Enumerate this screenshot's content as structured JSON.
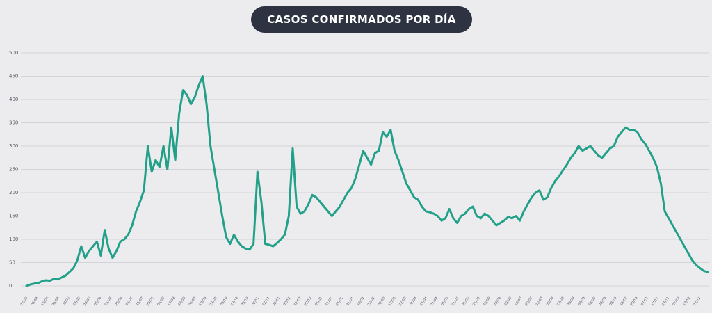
{
  "chart_data": {
    "type": "line",
    "title": "CASOS CONFIRMADOS POR DÍA",
    "xlabel": "",
    "ylabel": "",
    "ylim": [
      0,
      500
    ],
    "y_ticks": [
      "0",
      "50",
      "100",
      "150",
      "200",
      "250",
      "300",
      "350",
      "400",
      "450",
      "500"
    ],
    "x_tick_labels": [
      "27/03",
      "06/04",
      "16/04",
      "26/04",
      "06/05",
      "16/05",
      "26/05",
      "05/06",
      "15/06",
      "25/06",
      "05/07",
      "15/07",
      "25/07",
      "04/08",
      "14/08",
      "24/08",
      "03/09",
      "13/09",
      "23/09",
      "03/10",
      "13/10",
      "23/10",
      "02/11",
      "12/11",
      "22/11",
      "02/12",
      "12/12",
      "22/12",
      "01/01",
      "11/01",
      "21/01",
      "31/01",
      "10/02",
      "20/02",
      "02/03",
      "12/03",
      "22/03",
      "01/04",
      "11/04",
      "21/04",
      "01/05",
      "11/05",
      "21/05",
      "31/05",
      "10/06",
      "20/06",
      "30/06",
      "10/07",
      "20/07",
      "30/07",
      "09/08",
      "19/08",
      "29/08",
      "08/09",
      "18/09",
      "28/09",
      "08/10",
      "18/10",
      "28/10",
      "07/11",
      "17/11",
      "27/11",
      "07/12",
      "17/12",
      "27/12"
    ],
    "grid": true,
    "line_color": "#22a08a",
    "series": [
      {
        "name": "",
        "values": [
          0,
          3,
          5,
          6,
          10,
          12,
          11,
          15,
          14,
          18,
          22,
          30,
          38,
          55,
          85,
          60,
          75,
          85,
          95,
          65,
          120,
          80,
          60,
          75,
          95,
          100,
          110,
          130,
          160,
          180,
          205,
          300,
          245,
          270,
          255,
          300,
          250,
          340,
          270,
          370,
          420,
          410,
          390,
          405,
          430,
          450,
          390,
          300,
          250,
          200,
          150,
          105,
          90,
          110,
          95,
          85,
          80,
          78,
          90,
          245,
          180,
          90,
          88,
          85,
          92,
          100,
          110,
          150,
          295,
          170,
          155,
          160,
          175,
          195,
          190,
          180,
          170,
          160,
          150,
          160,
          170,
          185,
          200,
          210,
          230,
          260,
          290,
          275,
          260,
          285,
          290,
          330,
          320,
          335,
          290,
          270,
          245,
          220,
          205,
          190,
          185,
          170,
          160,
          158,
          155,
          150,
          140,
          145,
          165,
          145,
          135,
          150,
          155,
          165,
          170,
          150,
          145,
          155,
          150,
          140,
          130,
          135,
          140,
          148,
          145,
          150,
          140,
          160,
          175,
          190,
          200,
          205,
          185,
          190,
          210,
          225,
          235,
          248,
          260,
          275,
          285,
          300,
          290,
          295,
          300,
          290,
          280,
          275,
          285,
          295,
          300,
          320,
          330,
          340,
          335,
          335,
          330,
          315,
          305,
          290,
          275,
          255,
          220,
          160,
          145,
          130,
          115,
          100,
          85,
          70,
          55,
          45,
          38,
          32,
          30
        ]
      }
    ]
  }
}
